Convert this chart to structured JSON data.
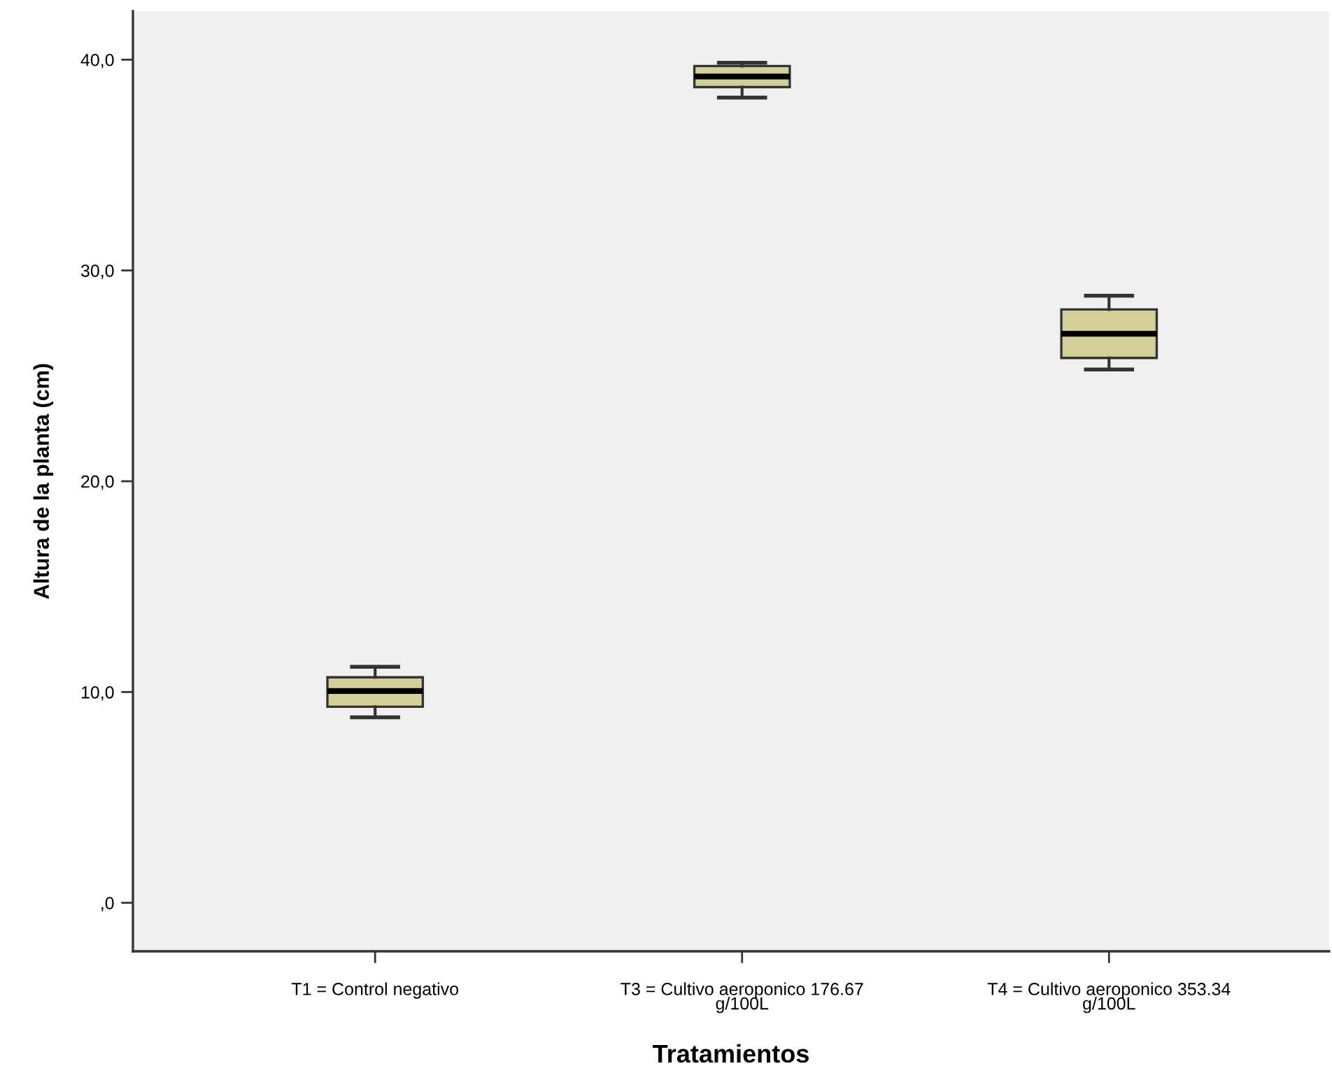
{
  "chart_data": {
    "type": "box",
    "xlabel": "Tratamientos",
    "ylabel": "Altura de la planta (cm)",
    "categories": [
      "T1 = Control negativo",
      "T3 = Cultivo aeroponico 176.67\ng/100L",
      "T4 = Cultivo aeroponico 353.34\ng/100L"
    ],
    "series": [
      {
        "color": "#d4cf98",
        "boxes": [
          {
            "low": 8.8,
            "q1": 9.3,
            "median": 10.05,
            "q3": 10.7,
            "high": 11.2
          },
          {
            "low": 38.2,
            "q1": 38.7,
            "median": 39.2,
            "q3": 39.7,
            "high": 39.85
          },
          {
            "low": 25.3,
            "q1": 25.85,
            "median": 27.0,
            "q3": 28.15,
            "high": 28.8
          }
        ]
      }
    ],
    "ylim": [
      -2.3,
      42.3
    ],
    "yticks": [
      {
        "value": 0,
        "label": ",0"
      },
      {
        "value": 10,
        "label": "10,0"
      },
      {
        "value": 20,
        "label": "20,0"
      },
      {
        "value": 30,
        "label": "30,0"
      },
      {
        "value": 40,
        "label": "40,0"
      }
    ]
  }
}
